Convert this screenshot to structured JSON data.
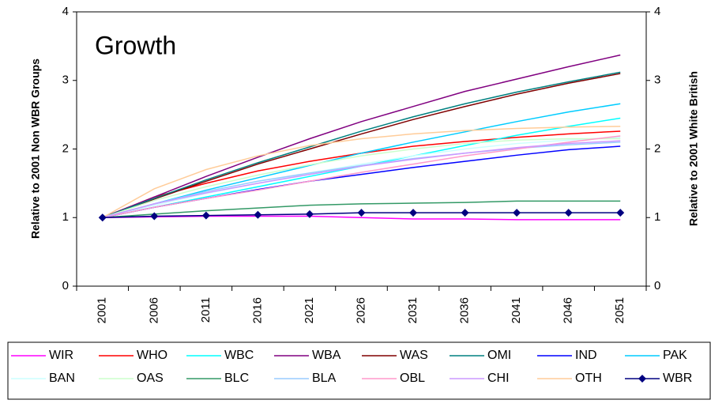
{
  "chart_data": {
    "type": "line",
    "title": "Growth",
    "y_label": "Relative to 2001 Non WBR Groups",
    "y2_label": "Relative to 2001 White British",
    "categories": [
      "2001",
      "2006",
      "2011",
      "2016",
      "2021",
      "2026",
      "2031",
      "2036",
      "2041",
      "2046",
      "2051"
    ],
    "ylim": [
      0,
      4
    ],
    "yticks": [
      0,
      1,
      2,
      3,
      4
    ],
    "y2lim": [
      0,
      4
    ],
    "y2ticks": [
      0,
      1,
      2,
      3,
      4
    ],
    "legend": "bottom",
    "series": [
      {
        "name": "WIR",
        "color": "#ff00ff",
        "values": [
          1,
          1.01,
          1.02,
          1.02,
          1.02,
          1.0,
          0.98,
          0.98,
          0.97,
          0.97,
          0.97
        ]
      },
      {
        "name": "WHO",
        "color": "#ff0000",
        "values": [
          1,
          1.3,
          1.5,
          1.68,
          1.82,
          1.94,
          2.04,
          2.11,
          2.17,
          2.22,
          2.26
        ]
      },
      {
        "name": "WBC",
        "color": "#00ffff",
        "values": [
          1,
          1.15,
          1.3,
          1.45,
          1.6,
          1.75,
          1.9,
          2.05,
          2.2,
          2.33,
          2.45
        ]
      },
      {
        "name": "WBA",
        "color": "#800080",
        "values": [
          1,
          1.3,
          1.6,
          1.88,
          2.15,
          2.4,
          2.62,
          2.84,
          3.02,
          3.2,
          3.37
        ]
      },
      {
        "name": "WAS",
        "color": "#800000",
        "values": [
          1,
          1.27,
          1.53,
          1.78,
          2.0,
          2.22,
          2.43,
          2.62,
          2.8,
          2.96,
          3.1
        ]
      },
      {
        "name": "OMI",
        "color": "#008080",
        "values": [
          1,
          1.28,
          1.55,
          1.8,
          2.03,
          2.26,
          2.47,
          2.66,
          2.83,
          2.98,
          3.12
        ]
      },
      {
        "name": "IND",
        "color": "#0000ff",
        "values": [
          1,
          1.15,
          1.28,
          1.41,
          1.53,
          1.63,
          1.73,
          1.82,
          1.91,
          1.99,
          2.04
        ]
      },
      {
        "name": "PAK",
        "color": "#00ccff",
        "values": [
          1,
          1.2,
          1.4,
          1.58,
          1.76,
          1.94,
          2.1,
          2.25,
          2.4,
          2.54,
          2.66
        ]
      },
      {
        "name": "BAN",
        "color": "#ccffff",
        "values": [
          1,
          1.18,
          1.35,
          1.5,
          1.65,
          1.78,
          1.9,
          2.0,
          2.08,
          2.13,
          2.17
        ]
      },
      {
        "name": "OAS",
        "color": "#ccffcc",
        "values": [
          1,
          1.25,
          1.45,
          1.62,
          1.77,
          1.9,
          2.0,
          2.08,
          2.13,
          2.15,
          2.15
        ]
      },
      {
        "name": "BLC",
        "color": "#339966",
        "values": [
          1,
          1.05,
          1.1,
          1.14,
          1.18,
          1.2,
          1.21,
          1.22,
          1.24,
          1.24,
          1.24
        ]
      },
      {
        "name": "BLA",
        "color": "#99ccff",
        "values": [
          1,
          1.2,
          1.38,
          1.53,
          1.65,
          1.76,
          1.86,
          1.94,
          2.01,
          2.06,
          2.1
        ]
      },
      {
        "name": "OBL",
        "color": "#ff99cc",
        "values": [
          1,
          1.15,
          1.28,
          1.4,
          1.53,
          1.66,
          1.78,
          1.9,
          2.0,
          2.1,
          2.19
        ]
      },
      {
        "name": "CHI",
        "color": "#cc99ff",
        "values": [
          1,
          1.2,
          1.36,
          1.5,
          1.63,
          1.75,
          1.85,
          1.94,
          2.02,
          2.08,
          2.12
        ]
      },
      {
        "name": "OTH",
        "color": "#ffcc99",
        "values": [
          1,
          1.42,
          1.7,
          1.9,
          2.05,
          2.15,
          2.22,
          2.27,
          2.3,
          2.32,
          2.33
        ]
      },
      {
        "name": "WBR",
        "color": "#000080",
        "axis": "y2",
        "marker": "diamond",
        "values": [
          1,
          1.02,
          1.03,
          1.04,
          1.05,
          1.07,
          1.07,
          1.07,
          1.07,
          1.07,
          1.07
        ]
      }
    ]
  }
}
